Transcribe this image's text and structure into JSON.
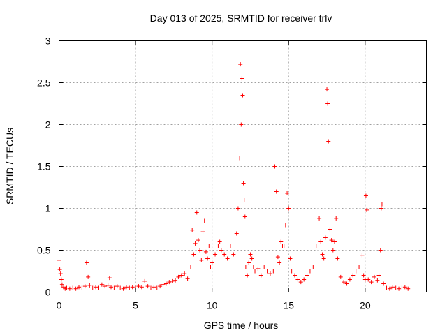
{
  "chart_data": {
    "type": "scatter",
    "title": "Day 013 of 2025, SRMTID for receiver trlv",
    "xlabel": "GPS time / hours",
    "ylabel": "SRMTID / TECUs",
    "xlim": [
      0,
      24
    ],
    "ylim": [
      0,
      3
    ],
    "xticks": [
      0,
      5,
      10,
      15,
      20
    ],
    "xtick_labels": [
      "0",
      "5",
      "10",
      "15",
      "20"
    ],
    "yticks": [
      0,
      0.5,
      1,
      1.5,
      2,
      2.5,
      3
    ],
    "ytick_labels": [
      "0",
      "0.5",
      "1",
      "1.5",
      "2",
      "2.5",
      "3"
    ],
    "grid": true,
    "marker": "plus",
    "color": "#ff0000",
    "series": [
      {
        "name": "SRMTID",
        "x": [
          0.0,
          0.05,
          0.1,
          0.15,
          0.2,
          0.3,
          0.4,
          0.5,
          0.7,
          0.9,
          1.1,
          1.3,
          1.5,
          1.7,
          1.8,
          1.9,
          2.0,
          2.2,
          2.4,
          2.6,
          2.8,
          3.0,
          3.2,
          3.3,
          3.4,
          3.6,
          3.8,
          4.0,
          4.2,
          4.4,
          4.6,
          4.8,
          5.0,
          5.2,
          5.4,
          5.6,
          5.8,
          6.0,
          6.2,
          6.4,
          6.6,
          6.8,
          7.0,
          7.2,
          7.4,
          7.6,
          7.8,
          8.0,
          8.2,
          8.4,
          8.6,
          8.7,
          8.8,
          8.9,
          9.0,
          9.1,
          9.2,
          9.3,
          9.4,
          9.5,
          9.6,
          9.7,
          9.8,
          9.9,
          10.0,
          10.2,
          10.4,
          10.5,
          10.6,
          10.8,
          11.0,
          11.2,
          11.4,
          11.6,
          11.7,
          11.8,
          11.85,
          11.9,
          11.95,
          12.0,
          12.05,
          12.1,
          12.15,
          12.2,
          12.3,
          12.4,
          12.5,
          12.6,
          12.7,
          12.8,
          13.0,
          13.2,
          13.4,
          13.6,
          13.8,
          14.0,
          14.1,
          14.2,
          14.3,
          14.4,
          14.5,
          14.6,
          14.7,
          14.8,
          14.9,
          15.0,
          15.1,
          15.2,
          15.4,
          15.6,
          15.8,
          16.0,
          16.2,
          16.4,
          16.6,
          16.8,
          17.0,
          17.1,
          17.2,
          17.3,
          17.4,
          17.5,
          17.55,
          17.6,
          17.7,
          17.8,
          17.9,
          18.0,
          18.1,
          18.2,
          18.4,
          18.6,
          18.8,
          19.0,
          19.2,
          19.4,
          19.6,
          19.8,
          19.9,
          20.0,
          20.05,
          20.1,
          20.2,
          20.4,
          20.6,
          20.8,
          20.9,
          21.0,
          21.05,
          21.1,
          21.2,
          21.4,
          21.6,
          21.8,
          22.0,
          22.2,
          22.4,
          22.6,
          22.8
        ],
        "y": [
          0.38,
          0.27,
          0.22,
          0.15,
          0.09,
          0.06,
          0.04,
          0.05,
          0.04,
          0.05,
          0.04,
          0.06,
          0.05,
          0.07,
          0.35,
          0.18,
          0.08,
          0.05,
          0.06,
          0.05,
          0.09,
          0.07,
          0.08,
          0.17,
          0.06,
          0.05,
          0.07,
          0.05,
          0.04,
          0.06,
          0.05,
          0.06,
          0.05,
          0.07,
          0.06,
          0.13,
          0.07,
          0.05,
          0.06,
          0.05,
          0.07,
          0.09,
          0.1,
          0.12,
          0.13,
          0.14,
          0.18,
          0.2,
          0.22,
          0.16,
          0.3,
          0.74,
          0.45,
          0.58,
          0.95,
          0.62,
          0.5,
          0.38,
          0.72,
          0.85,
          0.48,
          0.4,
          0.55,
          0.3,
          0.35,
          0.45,
          0.55,
          0.6,
          0.5,
          0.45,
          0.4,
          0.55,
          0.45,
          0.7,
          1.0,
          1.6,
          2.72,
          2.0,
          2.55,
          2.35,
          1.3,
          1.1,
          0.9,
          0.3,
          0.2,
          0.35,
          0.45,
          0.4,
          0.3,
          0.25,
          0.28,
          0.2,
          0.3,
          0.25,
          0.22,
          0.25,
          1.5,
          1.2,
          0.42,
          0.35,
          0.6,
          0.55,
          0.55,
          0.8,
          1.18,
          1.0,
          0.4,
          0.25,
          0.2,
          0.15,
          0.12,
          0.15,
          0.2,
          0.25,
          0.3,
          0.55,
          0.88,
          0.6,
          0.45,
          0.4,
          0.65,
          2.42,
          2.25,
          1.8,
          0.75,
          0.62,
          0.5,
          0.6,
          0.88,
          0.4,
          0.18,
          0.12,
          0.1,
          0.15,
          0.2,
          0.25,
          0.3,
          0.44,
          0.2,
          0.15,
          1.15,
          0.98,
          0.15,
          0.12,
          0.18,
          0.14,
          0.2,
          0.5,
          1.0,
          1.05,
          0.1,
          0.05,
          0.04,
          0.06,
          0.05,
          0.04,
          0.05,
          0.06,
          0.04
        ]
      }
    ]
  }
}
